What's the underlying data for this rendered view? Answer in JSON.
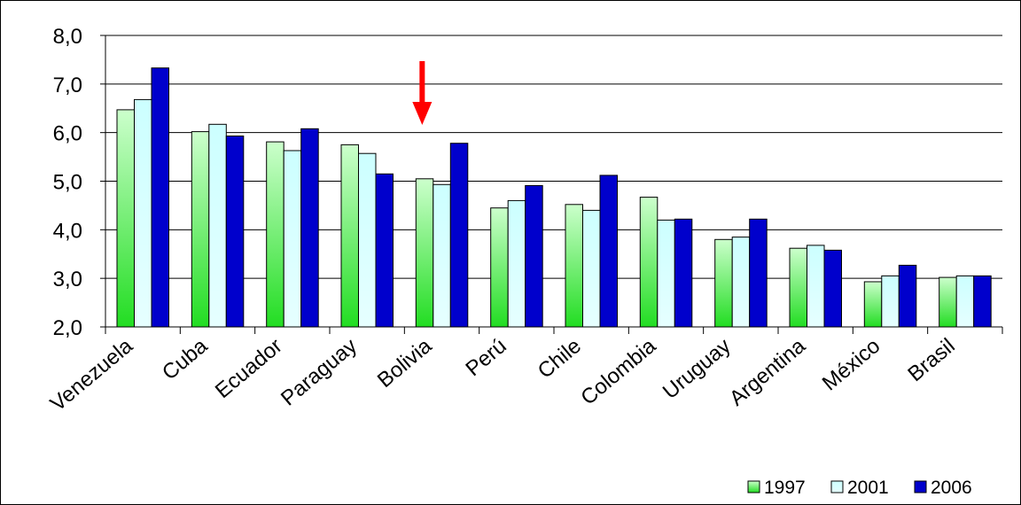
{
  "chart_data": {
    "type": "bar",
    "title": "",
    "xlabel": "",
    "ylabel": "",
    "ylim": [
      2.0,
      8.0
    ],
    "yticks": [
      "2,0",
      "3,0",
      "4,0",
      "5,0",
      "6,0",
      "7,0",
      "8,0"
    ],
    "ytick_values": [
      2,
      3,
      4,
      5,
      6,
      7,
      8
    ],
    "grid": true,
    "legend_position": "bottom-right",
    "categories": [
      "Venezuela",
      "Cuba",
      "Ecuador",
      "Paraguay",
      "Bolivia",
      "Perú",
      "Chile",
      "Colombia",
      "Uruguay",
      "Argentina",
      "México",
      "Brasil"
    ],
    "series": [
      {
        "name": "1997",
        "color": "#33cc33",
        "values": [
          6.47,
          6.02,
          5.81,
          5.75,
          5.05,
          4.45,
          4.52,
          4.67,
          3.8,
          3.62,
          2.93,
          3.02
        ]
      },
      {
        "name": "2001",
        "color": "#ccffff",
        "values": [
          6.68,
          6.17,
          5.63,
          5.57,
          4.93,
          4.6,
          4.4,
          4.2,
          3.85,
          3.68,
          3.05,
          3.05
        ]
      },
      {
        "name": "2006",
        "color": "#0000cc",
        "values": [
          7.33,
          5.93,
          6.08,
          5.15,
          5.78,
          4.91,
          5.12,
          4.22,
          4.22,
          3.58,
          3.27,
          3.05
        ]
      }
    ],
    "annotation": {
      "type": "arrow",
      "color": "#ff0000",
      "points_to": "Bolivia"
    }
  }
}
